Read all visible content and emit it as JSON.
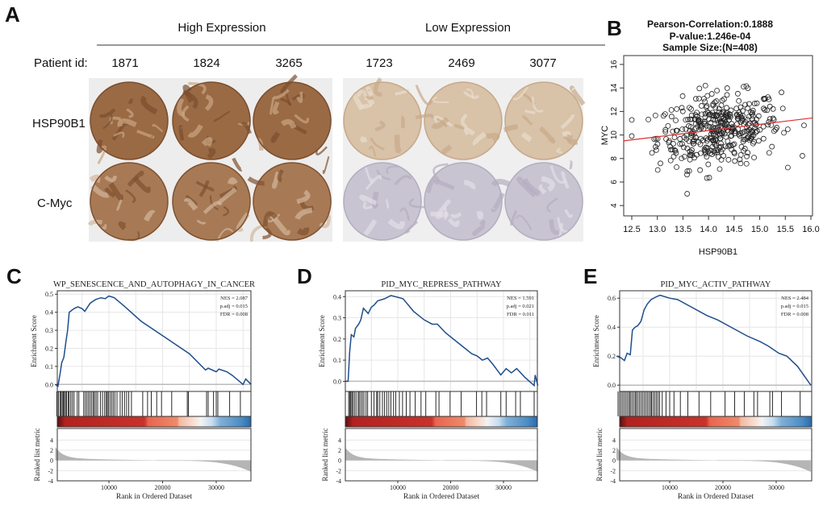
{
  "panel_letters": {
    "a": "A",
    "b": "B",
    "c": "C",
    "d": "D",
    "e": "E"
  },
  "panel_a": {
    "groups": [
      "High Expression",
      "Low Expression"
    ],
    "patient_label": "Patient id:",
    "patients": [
      "1871",
      "1824",
      "3265",
      "1723",
      "2469",
      "3077"
    ],
    "rows": [
      "HSP90B1",
      "C-Myc"
    ],
    "stain_intensity": {
      "HSP90B1": [
        "high",
        "high",
        "high",
        "low",
        "low",
        "low"
      ],
      "C-Myc": [
        "high",
        "high",
        "high",
        "low",
        "low",
        "low"
      ]
    }
  },
  "chart_data": [
    {
      "type": "scatter",
      "title_lines": [
        "Pearson-Correlation:0.1888",
        "P-value:1.246e-04",
        "Sample Size:(N=408)"
      ],
      "xlabel": "HSP90B1",
      "ylabel": "MYC",
      "xlim": [
        12.35,
        16.05
      ],
      "ylim": [
        3.5,
        16.5
      ],
      "xticks": [
        "12.5",
        "13.0",
        "13.5",
        "14.0",
        "14.5",
        "15.0",
        "15.5",
        "16.0"
      ],
      "yticks": [
        "4",
        "6",
        "8",
        "10",
        "12",
        "14",
        "16"
      ],
      "n": 408,
      "x_mean": 14.2,
      "x_sd": 0.6,
      "y_mean": 10.4,
      "y_sd": 1.5,
      "fit_line": [
        [
          12.35,
          9.5
        ],
        [
          16.05,
          11.45
        ]
      ],
      "fit_color": "#e03030"
    },
    {
      "type": "line",
      "title": "WP_SENESCENCE_AND_AUTOPHAGY_IN_CANCER",
      "stats": [
        "NES = 2.087",
        "p.adj = 0.015",
        "FDR = 0.008"
      ],
      "ylabel": "Enrichment Score",
      "ylabel2": "Ranked list metric",
      "xlabel": "Rank in Ordered Dataset",
      "xticks": [
        "10000",
        "20000",
        "30000"
      ],
      "yticks": [
        "0.0",
        "0.1",
        "0.2",
        "0.3",
        "0.4",
        "0.5"
      ],
      "ylim": [
        -0.012,
        0.51
      ],
      "xlim": [
        0,
        36500
      ],
      "es": [
        [
          0,
          0
        ],
        [
          500,
          -0.01
        ],
        [
          900,
          0.06
        ],
        [
          1200,
          0.12
        ],
        [
          1600,
          0.15
        ],
        [
          2000,
          0.24
        ],
        [
          2300,
          0.3
        ],
        [
          2600,
          0.4
        ],
        [
          3500,
          0.42
        ],
        [
          4200,
          0.43
        ],
        [
          5000,
          0.42
        ],
        [
          5500,
          0.405
        ],
        [
          6500,
          0.45
        ],
        [
          7500,
          0.47
        ],
        [
          8500,
          0.48
        ],
        [
          9300,
          0.475
        ],
        [
          10000,
          0.49
        ],
        [
          11000,
          0.48
        ],
        [
          13000,
          0.43
        ],
        [
          16000,
          0.35
        ],
        [
          20000,
          0.27
        ],
        [
          23000,
          0.21
        ],
        [
          25000,
          0.17
        ],
        [
          28000,
          0.08
        ],
        [
          28500,
          0.09
        ],
        [
          30000,
          0.07
        ],
        [
          30500,
          0.085
        ],
        [
          32000,
          0.07
        ],
        [
          33000,
          0.05
        ],
        [
          35000,
          0.0
        ],
        [
          35500,
          0.03
        ],
        [
          36500,
          0.0
        ]
      ],
      "hits": [
        300,
        600,
        900,
        1100,
        1300,
        1500,
        1700,
        1900,
        2100,
        2400,
        2600,
        2900,
        3200,
        3500,
        4100,
        4400,
        5300,
        5600,
        5900,
        6200,
        6500,
        6800,
        7100,
        7300,
        7600,
        7900,
        8400,
        8800,
        9200,
        9500,
        9700,
        9900,
        10200,
        10500,
        10800,
        11100,
        11500,
        12100,
        12500,
        12900,
        13300,
        13700,
        14200,
        16300,
        17200,
        17900,
        18900,
        19800,
        21700,
        24600,
        24800,
        28200,
        28500,
        29500,
        30000,
        30300,
        32500,
        34500
      ],
      "ranked_ylim": [
        -4,
        5
      ],
      "ranked_yticks": [
        "4",
        "2",
        "0",
        "-2",
        "-4"
      ]
    },
    {
      "type": "line",
      "title": "PID_MYC_REPRESS_PATHWAY",
      "stats": [
        "NES = 1.591",
        "p.adj = 0.021",
        "FDR = 0.011"
      ],
      "ylabel": "Enrichment Score",
      "ylabel2": "Ranked list metric",
      "xlabel": "Rank in Ordered Dataset",
      "xticks": [
        "10000",
        "20000",
        "30000"
      ],
      "yticks": [
        "0.0",
        "0.1",
        "0.2",
        "0.3",
        "0.4"
      ],
      "ylim": [
        -0.025,
        0.42
      ],
      "xlim": [
        0,
        36500
      ],
      "es": [
        [
          0,
          0
        ],
        [
          600,
          0.0
        ],
        [
          900,
          0.14
        ],
        [
          1200,
          0.22
        ],
        [
          1700,
          0.21
        ],
        [
          2000,
          0.25
        ],
        [
          2600,
          0.27
        ],
        [
          3000,
          0.29
        ],
        [
          3500,
          0.345
        ],
        [
          4400,
          0.32
        ],
        [
          5000,
          0.35
        ],
        [
          5500,
          0.36
        ],
        [
          6200,
          0.38
        ],
        [
          7500,
          0.39
        ],
        [
          8700,
          0.405
        ],
        [
          9500,
          0.4
        ],
        [
          11000,
          0.39
        ],
        [
          13000,
          0.33
        ],
        [
          15000,
          0.29
        ],
        [
          16500,
          0.27
        ],
        [
          17500,
          0.27
        ],
        [
          19000,
          0.23
        ],
        [
          22000,
          0.17
        ],
        [
          24000,
          0.13
        ],
        [
          25000,
          0.12
        ],
        [
          26000,
          0.1
        ],
        [
          27000,
          0.11
        ],
        [
          28000,
          0.08
        ],
        [
          29500,
          0.03
        ],
        [
          30500,
          0.06
        ],
        [
          31500,
          0.04
        ],
        [
          32500,
          0.06
        ],
        [
          34000,
          0.02
        ],
        [
          35800,
          -0.02
        ],
        [
          36000,
          0.03
        ],
        [
          36500,
          -0.02
        ]
      ],
      "hits": [
        700,
        900,
        1100,
        1300,
        1500,
        1800,
        2100,
        2500,
        2700,
        3000,
        3300,
        3600,
        4000,
        4300,
        5000,
        5500,
        6000,
        6200,
        6600,
        7100,
        7500,
        7900,
        8300,
        8700,
        9200,
        9600,
        10300,
        10900,
        11600,
        12300,
        13300,
        14400,
        15300,
        17200,
        17800,
        19900,
        22000,
        24900,
        25900,
        26800,
        29500,
        30500,
        32300,
        33200,
        35800
      ],
      "ranked_ylim": [
        -4,
        5
      ],
      "ranked_yticks": [
        "4",
        "2",
        "0",
        "-2",
        "-4"
      ]
    },
    {
      "type": "line",
      "title": "PID_MYC_ACTIV_PATHWAY",
      "stats": [
        "NES = 2.484",
        "p.adj = 0.015",
        "FDR = 0.008"
      ],
      "ylabel": "Enrichment Score",
      "ylabel2": "Ranked list metric",
      "xlabel": "Rank in Ordered Dataset",
      "xticks": [
        "10000",
        "20000",
        "30000"
      ],
      "yticks": [
        "0.0",
        "0.2",
        "0.4",
        "0.6"
      ],
      "ylim": [
        -0.01,
        0.64
      ],
      "xlim": [
        0,
        36500
      ],
      "es": [
        [
          0,
          0.2
        ],
        [
          800,
          0.19
        ],
        [
          1500,
          0.17
        ],
        [
          2000,
          0.22
        ],
        [
          2600,
          0.21
        ],
        [
          3000,
          0.38
        ],
        [
          3500,
          0.4
        ],
        [
          4000,
          0.41
        ],
        [
          4600,
          0.44
        ],
        [
          5200,
          0.52
        ],
        [
          5800,
          0.56
        ],
        [
          6500,
          0.59
        ],
        [
          7500,
          0.61
        ],
        [
          8200,
          0.62
        ],
        [
          10000,
          0.6
        ],
        [
          11500,
          0.59
        ],
        [
          14000,
          0.54
        ],
        [
          17000,
          0.48
        ],
        [
          19000,
          0.45
        ],
        [
          22000,
          0.39
        ],
        [
          24500,
          0.34
        ],
        [
          27000,
          0.3
        ],
        [
          28500,
          0.27
        ],
        [
          30500,
          0.22
        ],
        [
          32000,
          0.2
        ],
        [
          34000,
          0.13
        ],
        [
          36500,
          0.0
        ]
      ],
      "hits": [
        300,
        600,
        900,
        1200,
        1500,
        1800,
        2100,
        2400,
        2600,
        2900,
        3200,
        3500,
        3700,
        4000,
        4300,
        4600,
        4900,
        5200,
        5500,
        5800,
        6100,
        6400,
        6600,
        6900,
        7200,
        7500,
        7800,
        8100,
        8600,
        9300,
        10000,
        10800,
        12000,
        13400,
        15500,
        17700,
        20400,
        22200,
        24000,
        25800,
        26500,
        28800,
        29300,
        31000,
        34500
      ],
      "ranked_ylim": [
        -4,
        5
      ],
      "ranked_yticks": [
        "4",
        "2",
        "0",
        "-2",
        "-4"
      ]
    }
  ]
}
